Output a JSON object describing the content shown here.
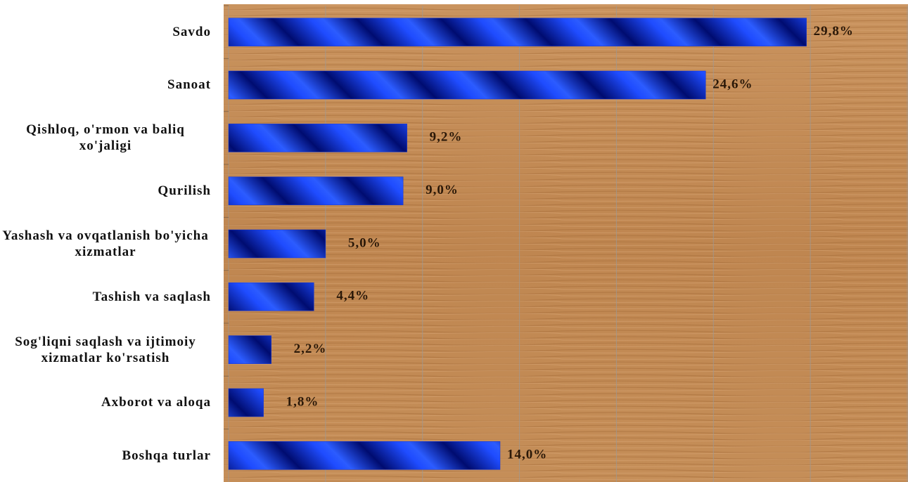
{
  "chart_data": {
    "type": "hbar",
    "categories": [
      "Savdo",
      "Sanoat",
      "Qishloq, o'rmon va baliq xo'jaligi",
      "Qurilish",
      "Yashash va ovqatlanish bo'yicha xizmatlar",
      "Tashish va saqlash",
      "Sog'liqni saqlash va ijtimoiy xizmatlar ko'rsatish",
      "Axborot va aloqa",
      "Boshqa turlar"
    ],
    "values": [
      29.8,
      24.6,
      9.2,
      9.0,
      5.0,
      4.4,
      2.2,
      1.8,
      14.0
    ],
    "value_labels": [
      "29,8%",
      "24,6%",
      "9,2%",
      "9,0%",
      "5,0%",
      "4,4%",
      "2,2%",
      "1,8%",
      "14,0%"
    ],
    "color": "#1035d8",
    "xlim": [
      0,
      35
    ],
    "xticks": [
      0,
      5,
      10,
      15,
      20,
      25,
      30,
      35
    ],
    "grid": true
  }
}
